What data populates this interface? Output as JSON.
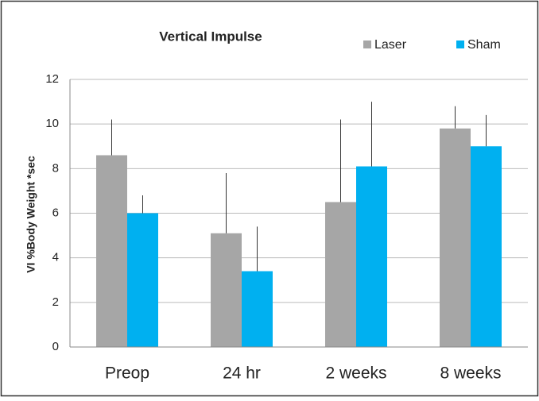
{
  "chart_data": {
    "type": "bar",
    "title": "Vertical Impulse",
    "y_label": "VI %Body Weight *sec",
    "categories": [
      "Preop",
      "24 hr",
      "2 weeks",
      "8 weeks"
    ],
    "series": [
      {
        "name": "Laser",
        "color": "#a6a6a6",
        "values": [
          8.6,
          5.1,
          6.5,
          9.8
        ],
        "errors": [
          1.6,
          2.7,
          3.7,
          1.0
        ]
      },
      {
        "name": "Sham",
        "color": "#00b0f0",
        "values": [
          6.0,
          3.4,
          8.1,
          9.0
        ],
        "errors": [
          0.8,
          2.0,
          2.9,
          1.4
        ]
      }
    ],
    "ylim": [
      0,
      12
    ],
    "yticks": [
      0,
      2,
      4,
      6,
      8,
      10,
      12
    ],
    "grid": true,
    "legend": "top-right"
  }
}
